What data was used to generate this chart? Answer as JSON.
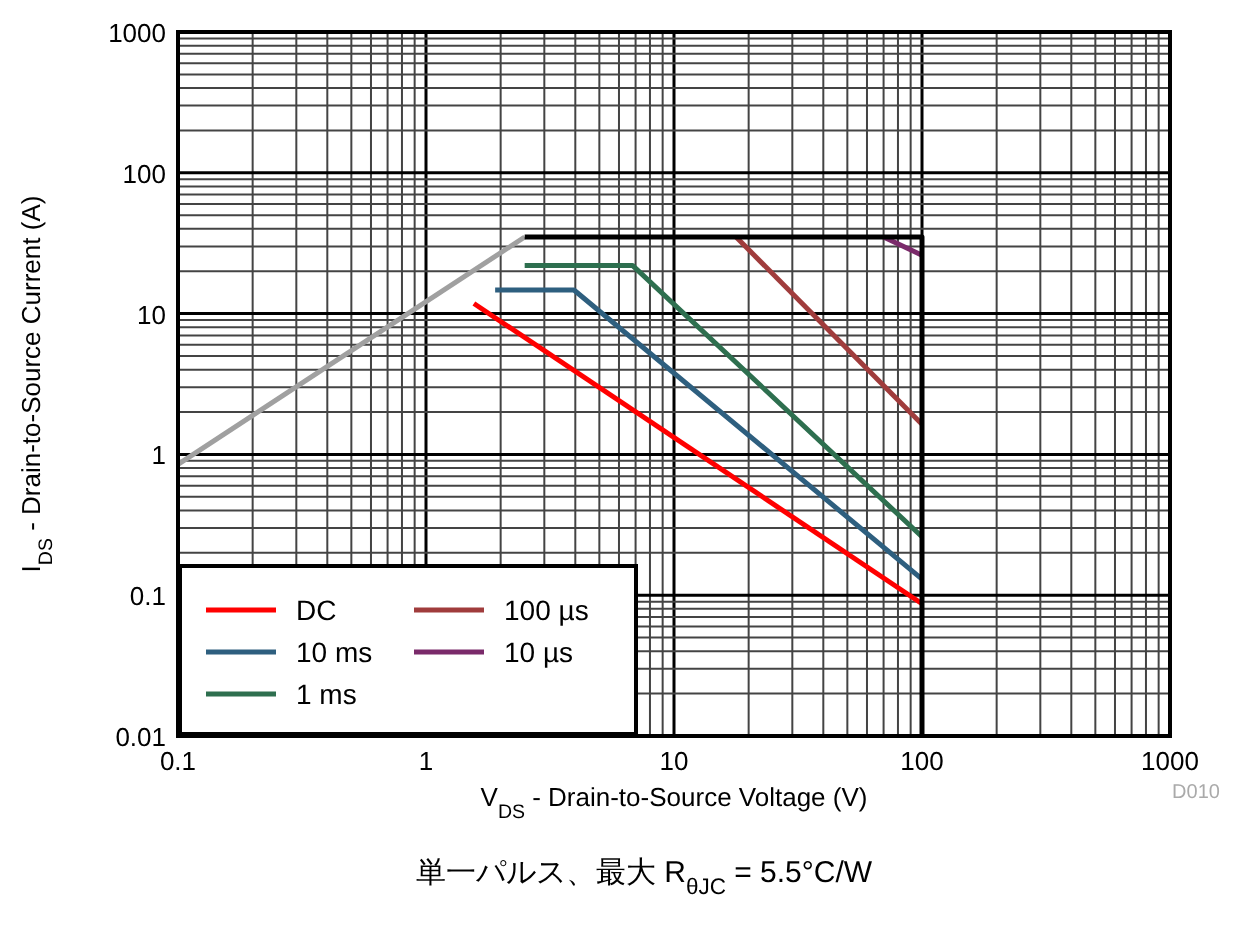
{
  "chart_data": {
    "type": "line",
    "xlabel": "V$_{DS}$ - Drain-to-Source Voltage (V)",
    "ylabel": "I$_{DS}$ - Drain-to-Source Current (A)",
    "log": "xy",
    "xlim": [
      0.1,
      1000
    ],
    "ylim": [
      0.01,
      1000
    ],
    "xticks": [
      0.1,
      1,
      10,
      100,
      1000
    ],
    "yticks": [
      0.01,
      0.1,
      1,
      10,
      100,
      1000
    ],
    "grid": true,
    "legend": "bottom left",
    "line_style": "solid",
    "marker": "none",
    "annotations": [
      "D010",
      "単一パルス、最大 R$_{θJC}$ = 5.5°C/W"
    ],
    "series": [
      {
        "name": "DC",
        "color": "#ff0000",
        "x": [
          1.56,
          100
        ],
        "values": [
          11.8,
          0.087
        ]
      },
      {
        "name": "10 ms",
        "color": "#2e5f7f",
        "x": [
          1.9,
          3.95,
          100
        ],
        "values": [
          14.7,
          14.7,
          0.13
        ]
      },
      {
        "name": "1 ms",
        "color": "#2e6f4f",
        "x": [
          2.5,
          6.8,
          100
        ],
        "values": [
          22,
          22,
          0.26
        ]
      },
      {
        "name": "100 µs",
        "color": "#a03c3c",
        "x": [
          17.8,
          100
        ],
        "values": [
          35,
          1.64
        ]
      },
      {
        "name": "10 µs",
        "color": "#7a2a6a",
        "x": [
          70,
          100
        ],
        "values": [
          35,
          26
        ]
      },
      {
        "color": "#a0a0a0",
        "x": [
          0.1,
          2.5
        ],
        "values": [
          0.85,
          35
        ]
      },
      {
        "color": "#000000",
        "x": [
          2.5,
          100,
          100
        ],
        "values": [
          35,
          35,
          0.01
        ]
      }
    ]
  }
}
